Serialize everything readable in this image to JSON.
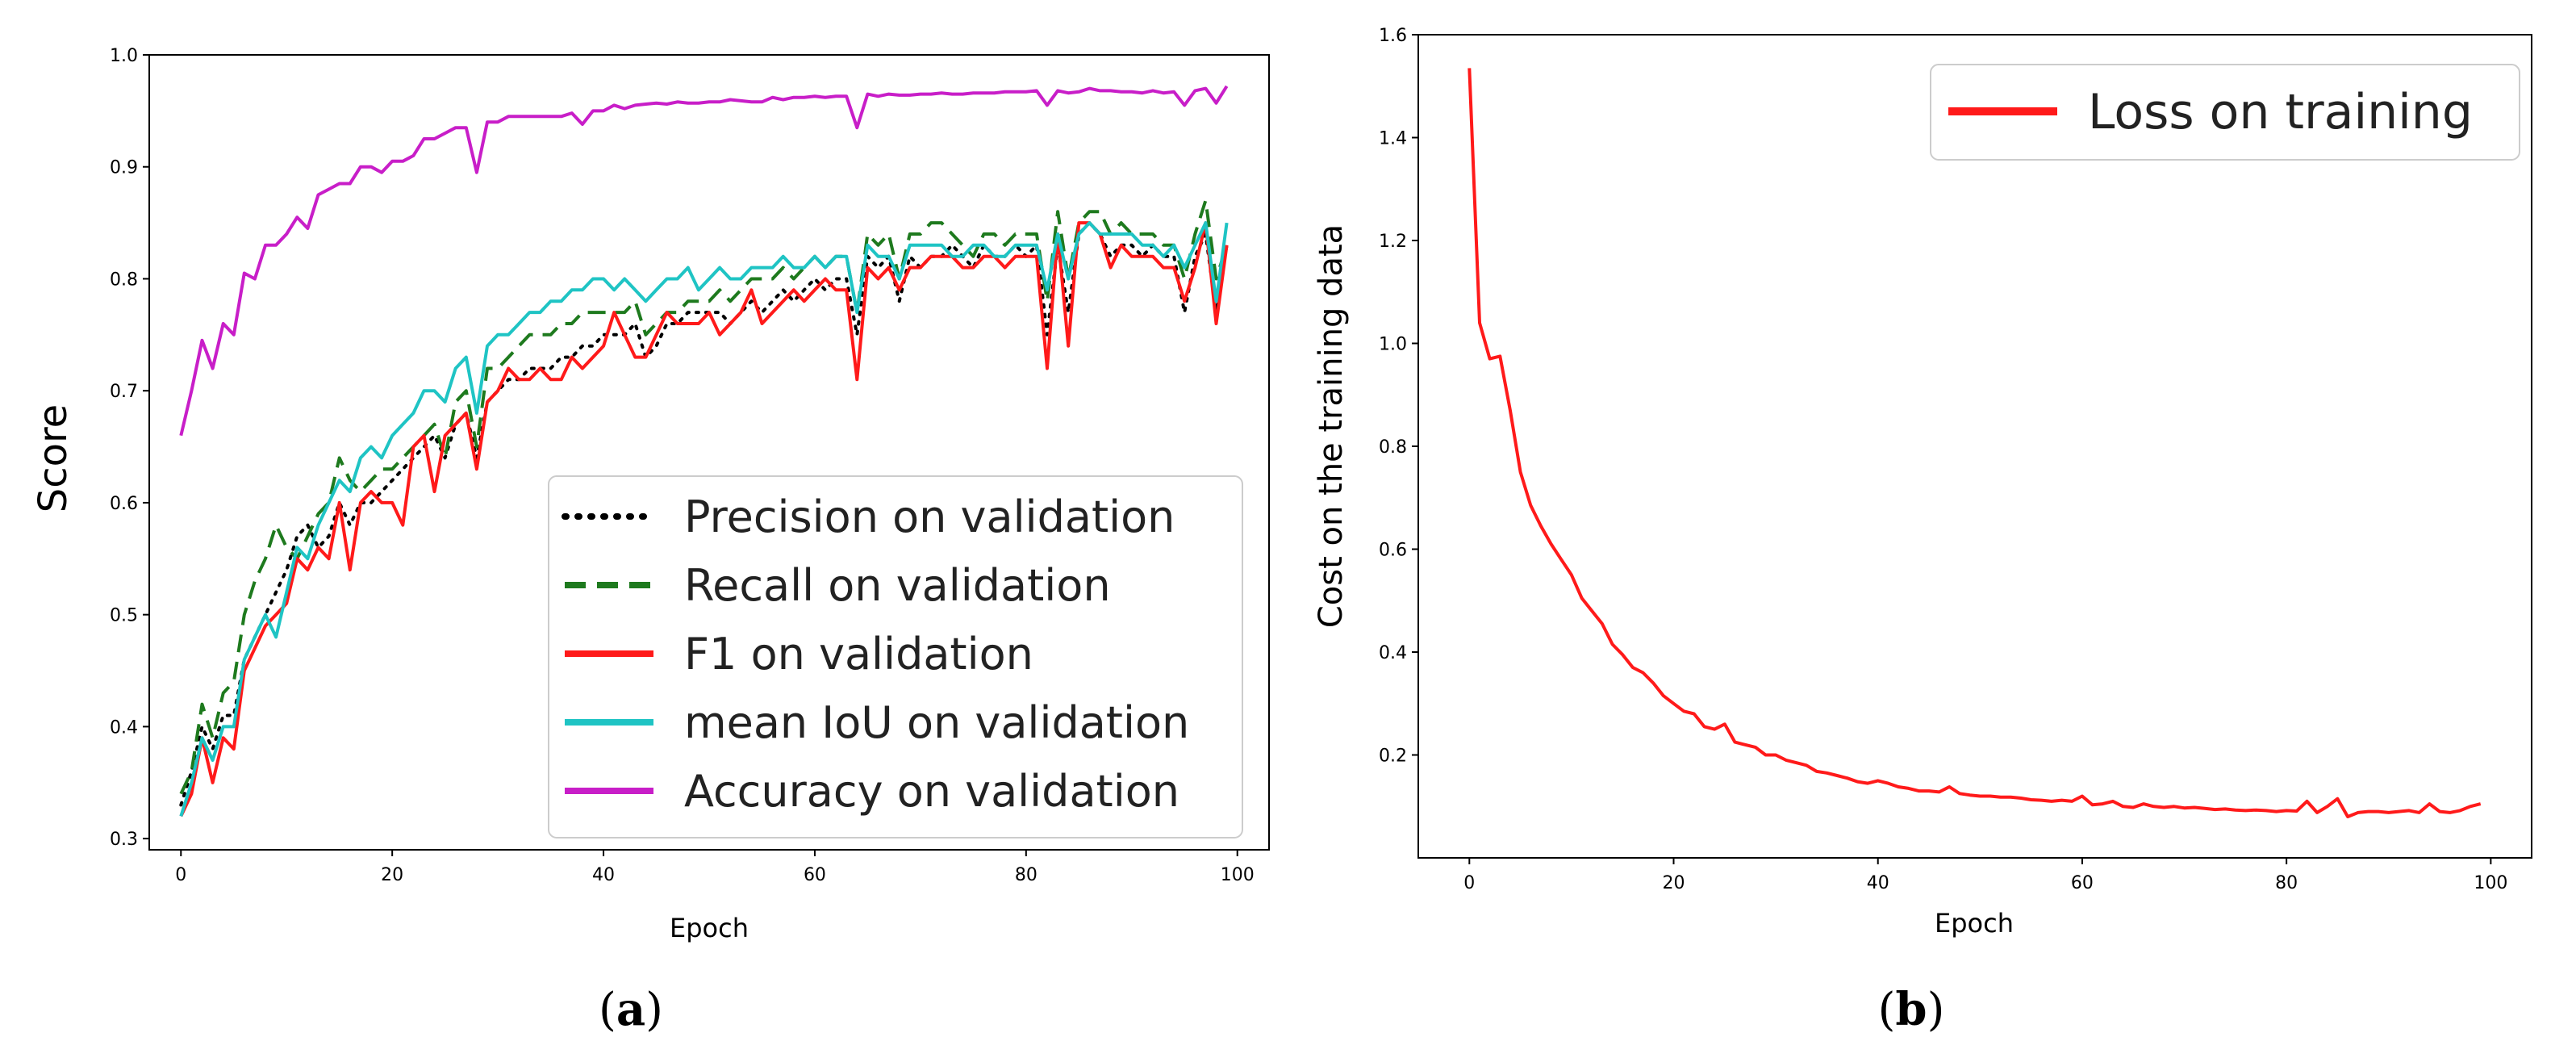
{
  "chart_data": [
    {
      "type": "line",
      "panel_label": "a",
      "title": "",
      "xlabel": "Epoch",
      "ylabel": "Score",
      "xlim": [
        -3,
        103
      ],
      "ylim": [
        0.29,
        1.0
      ],
      "xticks": [
        0,
        20,
        40,
        60,
        80,
        100
      ],
      "yticks": [
        0.3,
        0.4,
        0.5,
        0.6,
        0.7,
        0.8,
        0.9,
        1.0
      ],
      "legend_position": "lower-right",
      "series": [
        {
          "name": "Precision on validation",
          "color": "#000000",
          "style": "dotted",
          "values": [
            0.33,
            0.36,
            0.4,
            0.38,
            0.41,
            0.41,
            0.46,
            0.48,
            0.5,
            0.52,
            0.54,
            0.57,
            0.58,
            0.56,
            0.57,
            0.6,
            0.58,
            0.6,
            0.6,
            0.61,
            0.62,
            0.63,
            0.64,
            0.65,
            0.66,
            0.64,
            0.67,
            0.68,
            0.64,
            0.69,
            0.7,
            0.71,
            0.71,
            0.72,
            0.72,
            0.72,
            0.73,
            0.73,
            0.74,
            0.74,
            0.75,
            0.75,
            0.75,
            0.76,
            0.73,
            0.74,
            0.76,
            0.76,
            0.77,
            0.77,
            0.77,
            0.77,
            0.76,
            0.77,
            0.78,
            0.77,
            0.78,
            0.79,
            0.78,
            0.79,
            0.8,
            0.79,
            0.8,
            0.8,
            0.75,
            0.82,
            0.81,
            0.82,
            0.78,
            0.82,
            0.81,
            0.82,
            0.82,
            0.83,
            0.82,
            0.81,
            0.83,
            0.82,
            0.82,
            0.83,
            0.82,
            0.83,
            0.75,
            0.83,
            0.77,
            0.84,
            0.85,
            0.84,
            0.82,
            0.83,
            0.83,
            0.82,
            0.83,
            0.82,
            0.82,
            0.77,
            0.82,
            0.84,
            0.77,
            0.83
          ]
        },
        {
          "name": "Recall on validation",
          "color": "#1e7a1e",
          "style": "dashed",
          "values": [
            0.34,
            0.36,
            0.42,
            0.39,
            0.43,
            0.44,
            0.5,
            0.53,
            0.55,
            0.58,
            0.56,
            0.55,
            0.57,
            0.59,
            0.6,
            0.64,
            0.62,
            0.61,
            0.62,
            0.63,
            0.63,
            0.64,
            0.65,
            0.66,
            0.67,
            0.64,
            0.69,
            0.7,
            0.65,
            0.72,
            0.72,
            0.73,
            0.74,
            0.75,
            0.75,
            0.75,
            0.76,
            0.76,
            0.77,
            0.77,
            0.77,
            0.77,
            0.77,
            0.78,
            0.75,
            0.76,
            0.77,
            0.77,
            0.78,
            0.78,
            0.78,
            0.79,
            0.78,
            0.79,
            0.8,
            0.8,
            0.8,
            0.81,
            0.8,
            0.81,
            0.82,
            0.81,
            0.82,
            0.82,
            0.77,
            0.84,
            0.83,
            0.84,
            0.8,
            0.84,
            0.84,
            0.85,
            0.85,
            0.84,
            0.83,
            0.82,
            0.84,
            0.84,
            0.83,
            0.84,
            0.84,
            0.84,
            0.78,
            0.86,
            0.8,
            0.85,
            0.86,
            0.86,
            0.84,
            0.85,
            0.84,
            0.84,
            0.84,
            0.83,
            0.83,
            0.8,
            0.84,
            0.87,
            0.8,
            0.83
          ]
        },
        {
          "name": "F1 on validation",
          "color": "#ff1a1a",
          "style": "solid",
          "values": [
            0.32,
            0.34,
            0.39,
            0.35,
            0.39,
            0.38,
            0.45,
            0.47,
            0.49,
            0.5,
            0.51,
            0.55,
            0.54,
            0.56,
            0.55,
            0.6,
            0.54,
            0.6,
            0.61,
            0.6,
            0.6,
            0.58,
            0.65,
            0.66,
            0.61,
            0.66,
            0.67,
            0.68,
            0.63,
            0.69,
            0.7,
            0.72,
            0.71,
            0.71,
            0.72,
            0.71,
            0.71,
            0.73,
            0.72,
            0.73,
            0.74,
            0.77,
            0.75,
            0.73,
            0.73,
            0.75,
            0.77,
            0.76,
            0.76,
            0.76,
            0.77,
            0.75,
            0.76,
            0.77,
            0.79,
            0.76,
            0.77,
            0.78,
            0.79,
            0.78,
            0.79,
            0.8,
            0.79,
            0.79,
            0.71,
            0.81,
            0.8,
            0.81,
            0.79,
            0.81,
            0.81,
            0.82,
            0.82,
            0.82,
            0.81,
            0.81,
            0.82,
            0.82,
            0.81,
            0.82,
            0.82,
            0.82,
            0.72,
            0.84,
            0.74,
            0.85,
            0.85,
            0.84,
            0.81,
            0.83,
            0.82,
            0.82,
            0.82,
            0.81,
            0.81,
            0.78,
            0.81,
            0.85,
            0.76,
            0.83
          ]
        },
        {
          "name": "mean IoU on validation",
          "color": "#1fc4c4",
          "style": "solid",
          "values": [
            0.32,
            0.35,
            0.39,
            0.37,
            0.4,
            0.4,
            0.46,
            0.48,
            0.5,
            0.48,
            0.52,
            0.56,
            0.55,
            0.58,
            0.6,
            0.62,
            0.61,
            0.64,
            0.65,
            0.64,
            0.66,
            0.67,
            0.68,
            0.7,
            0.7,
            0.69,
            0.72,
            0.73,
            0.68,
            0.74,
            0.75,
            0.75,
            0.76,
            0.77,
            0.77,
            0.78,
            0.78,
            0.79,
            0.79,
            0.8,
            0.8,
            0.79,
            0.8,
            0.79,
            0.78,
            0.79,
            0.8,
            0.8,
            0.81,
            0.79,
            0.8,
            0.81,
            0.8,
            0.8,
            0.81,
            0.81,
            0.81,
            0.82,
            0.81,
            0.81,
            0.82,
            0.81,
            0.82,
            0.82,
            0.77,
            0.83,
            0.82,
            0.82,
            0.8,
            0.83,
            0.83,
            0.83,
            0.83,
            0.82,
            0.82,
            0.83,
            0.83,
            0.82,
            0.82,
            0.83,
            0.83,
            0.83,
            0.79,
            0.84,
            0.8,
            0.84,
            0.85,
            0.84,
            0.84,
            0.84,
            0.84,
            0.83,
            0.83,
            0.82,
            0.83,
            0.81,
            0.83,
            0.85,
            0.78,
            0.85
          ]
        },
        {
          "name": "Accuracy on validation",
          "color": "#c81ec8",
          "style": "solid",
          "values": [
            0.66,
            0.7,
            0.745,
            0.72,
            0.76,
            0.75,
            0.805,
            0.8,
            0.83,
            0.83,
            0.84,
            0.855,
            0.845,
            0.875,
            0.88,
            0.885,
            0.885,
            0.9,
            0.9,
            0.895,
            0.905,
            0.905,
            0.91,
            0.925,
            0.925,
            0.93,
            0.935,
            0.935,
            0.895,
            0.94,
            0.94,
            0.945,
            0.945,
            0.945,
            0.945,
            0.945,
            0.945,
            0.948,
            0.938,
            0.95,
            0.95,
            0.955,
            0.952,
            0.955,
            0.956,
            0.957,
            0.956,
            0.958,
            0.957,
            0.957,
            0.958,
            0.958,
            0.96,
            0.959,
            0.958,
            0.958,
            0.962,
            0.96,
            0.962,
            0.962,
            0.963,
            0.962,
            0.963,
            0.963,
            0.935,
            0.965,
            0.963,
            0.965,
            0.964,
            0.964,
            0.965,
            0.965,
            0.966,
            0.965,
            0.965,
            0.966,
            0.966,
            0.966,
            0.967,
            0.967,
            0.967,
            0.968,
            0.955,
            0.968,
            0.966,
            0.967,
            0.97,
            0.968,
            0.968,
            0.967,
            0.967,
            0.966,
            0.968,
            0.966,
            0.967,
            0.955,
            0.968,
            0.97,
            0.957,
            0.972
          ]
        }
      ]
    },
    {
      "type": "line",
      "panel_label": "b",
      "title": "",
      "xlabel": "Epoch",
      "ylabel": "Cost on the training data",
      "xlim": [
        -5,
        104
      ],
      "ylim": [
        0.0,
        1.6
      ],
      "xticks": [
        0,
        20,
        40,
        60,
        80,
        100
      ],
      "yticks": [
        0.2,
        0.4,
        0.6,
        0.8,
        1.0,
        1.2,
        1.4,
        1.6
      ],
      "legend_position": "top-right",
      "series": [
        {
          "name": "Loss on training",
          "color": "#ff1a1a",
          "style": "solid",
          "values": [
            1.535,
            1.04,
            0.97,
            0.975,
            0.87,
            0.75,
            0.685,
            0.645,
            0.61,
            0.58,
            0.55,
            0.505,
            0.48,
            0.455,
            0.415,
            0.395,
            0.37,
            0.36,
            0.34,
            0.315,
            0.3,
            0.285,
            0.28,
            0.255,
            0.25,
            0.26,
            0.225,
            0.22,
            0.215,
            0.2,
            0.2,
            0.19,
            0.185,
            0.18,
            0.168,
            0.165,
            0.16,
            0.155,
            0.148,
            0.145,
            0.15,
            0.145,
            0.138,
            0.135,
            0.13,
            0.13,
            0.128,
            0.138,
            0.125,
            0.122,
            0.12,
            0.12,
            0.118,
            0.118,
            0.116,
            0.113,
            0.112,
            0.11,
            0.112,
            0.11,
            0.12,
            0.103,
            0.105,
            0.11,
            0.1,
            0.098,
            0.105,
            0.1,
            0.098,
            0.1,
            0.097,
            0.098,
            0.096,
            0.094,
            0.095,
            0.093,
            0.092,
            0.093,
            0.092,
            0.09,
            0.092,
            0.091,
            0.11,
            0.088,
            0.1,
            0.115,
            0.08,
            0.088,
            0.09,
            0.09,
            0.088,
            0.09,
            0.092,
            0.088,
            0.105,
            0.09,
            0.088,
            0.092,
            0.1,
            0.105
          ]
        }
      ]
    }
  ]
}
